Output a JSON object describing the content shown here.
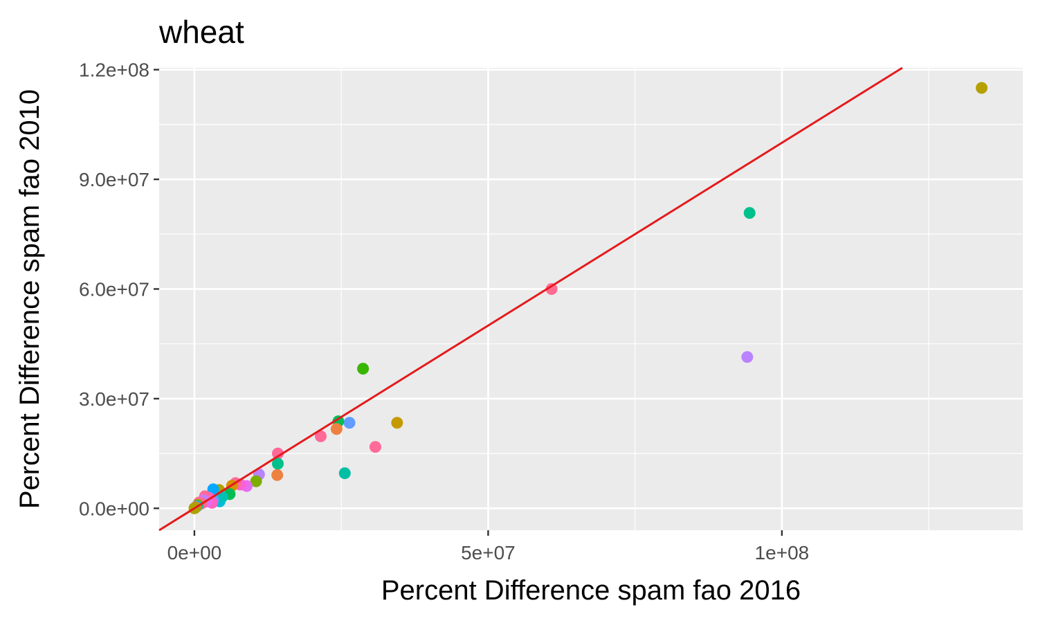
{
  "chart_data": {
    "type": "scatter",
    "title": "wheat",
    "xlabel": "Percent Difference spam fao 2016",
    "ylabel": "Percent Difference spam fao 2010",
    "xlim": [
      -6000000,
      141000000
    ],
    "ylim": [
      -6000000,
      120500000
    ],
    "x_ticks": [
      0,
      50000000,
      100000000
    ],
    "x_tick_labels": [
      "0e+00",
      "5e+07",
      "1e+08"
    ],
    "y_ticks": [
      0,
      30000000,
      60000000,
      90000000,
      120000000
    ],
    "y_tick_labels": [
      "0.0e+00",
      "3.0e+07",
      "6.0e+07",
      "9.0e+07",
      "1.2e+08"
    ],
    "grid": true,
    "background": "#ebebeb",
    "reference_line": {
      "slope": 1,
      "intercept": 0,
      "color": "#e41a1c"
    },
    "points": [
      {
        "x": 134000000,
        "y": 115000000,
        "color": "#b5a000"
      },
      {
        "x": 94500000,
        "y": 80800000,
        "color": "#00c08b"
      },
      {
        "x": 94100000,
        "y": 41400000,
        "color": "#b983ff"
      },
      {
        "x": 60800000,
        "y": 60000000,
        "color": "#ff6c91"
      },
      {
        "x": 28700000,
        "y": 38200000,
        "color": "#39b600"
      },
      {
        "x": 34500000,
        "y": 23400000,
        "color": "#c49a00"
      },
      {
        "x": 26400000,
        "y": 23400000,
        "color": "#619cff"
      },
      {
        "x": 24500000,
        "y": 23800000,
        "color": "#00bc56"
      },
      {
        "x": 24200000,
        "y": 21700000,
        "color": "#ed8141"
      },
      {
        "x": 21500000,
        "y": 19700000,
        "color": "#ff6a98"
      },
      {
        "x": 30800000,
        "y": 16800000,
        "color": "#ff6a98"
      },
      {
        "x": 25600000,
        "y": 9600000,
        "color": "#00bfa5"
      },
      {
        "x": 14200000,
        "y": 15000000,
        "color": "#ff6a98"
      },
      {
        "x": 14200000,
        "y": 12200000,
        "color": "#00c08b"
      },
      {
        "x": 14100000,
        "y": 9100000,
        "color": "#ed8141"
      },
      {
        "x": 11000000,
        "y": 9300000,
        "color": "#b983ff"
      },
      {
        "x": 10500000,
        "y": 7400000,
        "color": "#7cae00"
      },
      {
        "x": 8900000,
        "y": 6100000,
        "color": "#e76bf3"
      },
      {
        "x": 7800000,
        "y": 6500000,
        "color": "#fd61d1"
      },
      {
        "x": 7000000,
        "y": 6900000,
        "color": "#ff6a98"
      },
      {
        "x": 6400000,
        "y": 6200000,
        "color": "#d89000"
      },
      {
        "x": 6000000,
        "y": 3900000,
        "color": "#00bc56"
      },
      {
        "x": 4200000,
        "y": 5000000,
        "color": "#aea200"
      },
      {
        "x": 3200000,
        "y": 5200000,
        "color": "#00a9ff"
      },
      {
        "x": 4300000,
        "y": 1900000,
        "color": "#00bcd8"
      },
      {
        "x": 4700000,
        "y": 3100000,
        "color": "#00c0b8"
      },
      {
        "x": 3200000,
        "y": 2300000,
        "color": "#619cff"
      },
      {
        "x": 3000000,
        "y": 1500000,
        "color": "#ff61c3"
      },
      {
        "x": 2400000,
        "y": 2900000,
        "color": "#fd61d1"
      },
      {
        "x": 1800000,
        "y": 3300000,
        "color": "#ff6a98"
      },
      {
        "x": 2000000,
        "y": 1800000,
        "color": "#e76bf3"
      },
      {
        "x": 1500000,
        "y": 2200000,
        "color": "#c77cff"
      },
      {
        "x": 1200000,
        "y": 1300000,
        "color": "#ff6a98"
      },
      {
        "x": 800000,
        "y": 1600000,
        "color": "#ff6c91"
      },
      {
        "x": 600000,
        "y": 900000,
        "color": "#7cae00"
      },
      {
        "x": 400000,
        "y": 500000,
        "color": "#00b0f6"
      },
      {
        "x": 200000,
        "y": 300000,
        "color": "#f8766d"
      },
      {
        "x": 100000,
        "y": 100000,
        "color": "#a3a500"
      },
      {
        "x": 0,
        "y": 0,
        "color": "#aea200"
      }
    ]
  }
}
